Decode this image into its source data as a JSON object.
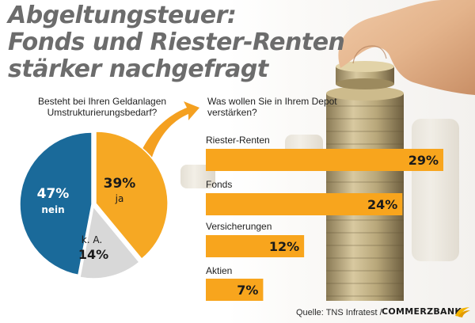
{
  "title_lines": [
    "Abgeltungsteuer:",
    "Fonds und Riester-Renten",
    "stärker nachgefragt"
  ],
  "source_label": "Quelle: TNS Infratest /",
  "brand_name": "COMMERZBANK",
  "brand_logo": "commerzbank-ribbon-icon",
  "background_image": "hand-stacking-coins-photo",
  "colors": {
    "title": "#6c6c6c",
    "pie_blue": "#1a6a9a",
    "pie_orange": "#f6a823",
    "pie_gray": "#d8d8d8",
    "bar_orange": "#f8a51d",
    "arrow": "#f4a020"
  },
  "chart_data": [
    {
      "type": "pie",
      "question": "Besteht bei Ihren Geldanlagen Umstrukturierungsbedarf?",
      "slices": [
        {
          "label": "ja",
          "value": 39,
          "value_label": "39%"
        },
        {
          "label": "k. A.",
          "value": 14,
          "value_label": "14%"
        },
        {
          "label": "nein",
          "value": 47,
          "value_label": "47%"
        }
      ]
    },
    {
      "type": "bar",
      "orientation": "horizontal",
      "question": "Was wollen Sie in Ihrem Depot verstärken?",
      "categories": [
        "Riester-Renten",
        "Fonds",
        "Versicherungen",
        "Aktien"
      ],
      "values": [
        29,
        24,
        12,
        7
      ],
      "value_labels": [
        "29%",
        "24%",
        "12%",
        "7%"
      ]
    }
  ]
}
